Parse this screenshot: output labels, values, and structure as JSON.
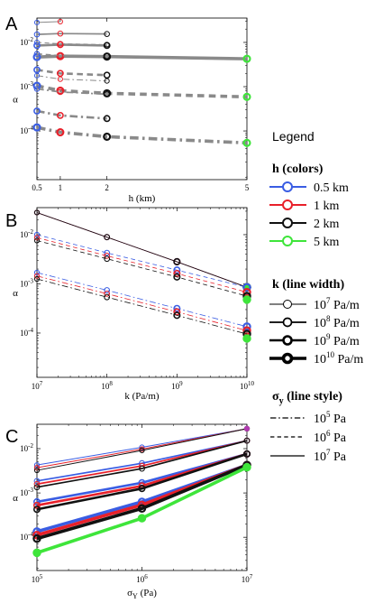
{
  "chart_data": [
    {
      "panel_label": "A",
      "type": "line",
      "xscale": "linear",
      "yscale": "log",
      "xlabel": "h (km)",
      "ylabel": "α",
      "xlim": [
        0.5,
        5
      ],
      "ylim": [
        -5.1,
        -1.45
      ],
      "xticks": [
        {
          "value": 0.5,
          "label": "0.5"
        },
        {
          "value": 1,
          "label": "1"
        },
        {
          "value": 2,
          "label": "2"
        },
        {
          "value": 5,
          "label": "5"
        }
      ],
      "yticks": [
        {
          "value": -4,
          "base": "10",
          "exp": "-4"
        },
        {
          "value": -3,
          "base": "10",
          "exp": "-3"
        },
        {
          "value": -2,
          "base": "10",
          "exp": "-2"
        }
      ],
      "series": [
        {
          "color": "gray",
          "width": 1.0,
          "style": "solid",
          "marker": 1,
          "x": [
            0.5,
            1
          ],
          "y": [
            -1.55,
            -1.53
          ]
        },
        {
          "color": "gray",
          "width": 1.7,
          "style": "solid",
          "marker": 1.7,
          "x": [
            0.5,
            1,
            2
          ],
          "y": [
            -1.82,
            -1.8,
            -1.81
          ]
        },
        {
          "color": "gray",
          "width": 2.6,
          "style": "solid",
          "marker": 2.6,
          "x": [
            0.5,
            1,
            2
          ],
          "y": [
            -2.07,
            -2.05,
            -2.07
          ]
        },
        {
          "color": "gray",
          "width": 3.6,
          "style": "solid",
          "marker": 3.6,
          "x": [
            0.5,
            1,
            2,
            5
          ],
          "y": [
            -2.33,
            -2.31,
            -2.32,
            -2.37
          ]
        },
        {
          "color": "gray",
          "width": 1.0,
          "style": "dashed",
          "marker": 1,
          "x": [
            0.5,
            1,
            2
          ],
          "y": [
            -2.0,
            -2.03,
            -2.05
          ]
        },
        {
          "color": "gray",
          "width": 1.7,
          "style": "dashed",
          "marker": 1.7,
          "x": [
            0.5,
            1,
            2
          ],
          "y": [
            -2.26,
            -2.3,
            -2.31
          ]
        },
        {
          "color": "gray",
          "width": 2.6,
          "style": "dashed",
          "marker": 2.6,
          "x": [
            0.5,
            1,
            2
          ],
          "y": [
            -2.62,
            -2.7,
            -2.74
          ]
        },
        {
          "color": "gray",
          "width": 3.6,
          "style": "dashed",
          "marker": 3.6,
          "x": [
            0.5,
            1,
            2,
            5
          ],
          "y": [
            -2.98,
            -3.09,
            -3.15,
            -3.23
          ]
        },
        {
          "color": "gray",
          "width": 1.0,
          "style": "dashdot",
          "marker": 1,
          "x": [
            0.5,
            1,
            2
          ],
          "y": [
            -2.75,
            -2.83,
            -2.87
          ]
        },
        {
          "color": "gray",
          "width": 1.7,
          "style": "dashdot",
          "marker": 1.7,
          "x": [
            0.5,
            1,
            2
          ],
          "y": [
            -3.05,
            -3.12,
            -3.17
          ]
        },
        {
          "color": "gray",
          "width": 2.6,
          "style": "dashdot",
          "marker": 2.6,
          "x": [
            0.5,
            1,
            2
          ],
          "y": [
            -3.55,
            -3.65,
            -3.72
          ]
        },
        {
          "color": "gray",
          "width": 3.6,
          "style": "dashdot",
          "marker": 3.6,
          "x": [
            0.5,
            1,
            2,
            5
          ],
          "y": [
            -3.92,
            -4.03,
            -4.13,
            -4.27
          ]
        }
      ]
    },
    {
      "panel_label": "B",
      "type": "line",
      "xscale": "log",
      "yscale": "log",
      "xlabel": "k (Pa/m)",
      "ylabel": "α",
      "xlim": [
        7,
        10
      ],
      "ylim": [
        -4.9,
        -1.45
      ],
      "xticks": [
        {
          "value": 7,
          "base": "10",
          "exp": "7"
        },
        {
          "value": 8,
          "base": "10",
          "exp": "8"
        },
        {
          "value": 9,
          "base": "10",
          "exp": "9"
        },
        {
          "value": 10,
          "base": "10",
          "exp": "10"
        }
      ],
      "yticks": [
        {
          "value": -4,
          "base": "10",
          "exp": "-4"
        },
        {
          "value": -3,
          "base": "10",
          "exp": "-3"
        },
        {
          "value": -2,
          "base": "10",
          "exp": "-2"
        }
      ],
      "series": [
        {
          "name_ref": "solid",
          "style": "solid",
          "x": [
            7,
            8,
            9,
            10
          ],
          "lines": [
            {
              "color": "blue",
              "y": [
                -1.55,
                -2.05,
                -2.55,
                -3.07
              ]
            },
            {
              "color": "red",
              "y": [
                -1.55,
                -2.05,
                -2.55,
                -3.07
              ]
            },
            {
              "color": "black",
              "y": [
                -1.55,
                -2.05,
                -2.55,
                -3.07
              ]
            },
            {
              "color": "green",
              "y": [
                null,
                null,
                null,
                -3.07
              ]
            }
          ],
          "markers": [
            [
              -1.55,
              -2.05,
              -2.55,
              -3.07
            ]
          ]
        },
        {
          "style": "dashed",
          "x": [
            7,
            8,
            9,
            10
          ],
          "lines": [
            {
              "color": "blue",
              "y": [
                -2.0,
                -2.37,
                -2.72,
                -3.07
              ]
            },
            {
              "color": "red",
              "y": [
                -2.06,
                -2.43,
                -2.79,
                -3.17
              ]
            },
            {
              "color": "black",
              "y": [
                -2.12,
                -2.49,
                -2.86,
                -3.25
              ]
            },
            {
              "color": "green",
              "y": [
                null,
                null,
                null,
                -3.32
              ]
            }
          ]
        },
        {
          "style": "dashdot",
          "x": [
            7,
            8,
            9,
            10
          ],
          "lines": [
            {
              "color": "blue",
              "y": [
                -2.77,
                -3.13,
                -3.5,
                -3.87
              ]
            },
            {
              "color": "red",
              "y": [
                -2.84,
                -3.2,
                -3.57,
                -3.95
              ]
            },
            {
              "color": "black",
              "y": [
                -2.9,
                -3.27,
                -3.64,
                -4.02
              ]
            },
            {
              "color": "green",
              "y": [
                null,
                null,
                null,
                -4.11
              ]
            }
          ]
        }
      ]
    },
    {
      "panel_label": "C",
      "type": "line",
      "xscale": "log",
      "yscale": "log",
      "xlabel": "σY (Pa)",
      "ylabel": "α",
      "xlim": [
        5,
        7
      ],
      "ylim": [
        -4.75,
        -1.45
      ],
      "xticks": [
        {
          "value": 5,
          "base": "10",
          "exp": "5"
        },
        {
          "value": 6,
          "base": "10",
          "exp": "6"
        },
        {
          "value": 7,
          "base": "10",
          "exp": "7"
        }
      ],
      "yticks": [
        {
          "value": -4,
          "base": "10",
          "exp": "-4"
        },
        {
          "value": -3,
          "base": "10",
          "exp": "-3"
        },
        {
          "value": -2,
          "base": "10",
          "exp": "-2"
        }
      ],
      "series": [
        {
          "color": "blue",
          "width": 1.0,
          "x": [
            5,
            6,
            7
          ],
          "y": [
            -2.37,
            -1.97,
            -1.55
          ]
        },
        {
          "color": "red",
          "width": 1.0,
          "x": [
            5,
            6,
            7
          ],
          "y": [
            -2.43,
            -2.01,
            -1.55
          ]
        },
        {
          "color": "black",
          "width": 1.0,
          "x": [
            5,
            6,
            7
          ],
          "y": [
            -2.49,
            -2.04,
            -1.55
          ]
        },
        {
          "color": "blue",
          "width": 1.7,
          "x": [
            5,
            6,
            7
          ],
          "y": [
            -2.73,
            -2.33,
            -1.82
          ]
        },
        {
          "color": "red",
          "width": 1.7,
          "x": [
            5,
            6,
            7
          ],
          "y": [
            -2.8,
            -2.39,
            -1.82
          ]
        },
        {
          "color": "black",
          "width": 1.7,
          "x": [
            5,
            6,
            7
          ],
          "y": [
            -2.87,
            -2.45,
            -1.82
          ]
        },
        {
          "color": "blue",
          "width": 2.6,
          "x": [
            5,
            6,
            7
          ],
          "y": [
            -3.2,
            -2.77,
            -2.12
          ]
        },
        {
          "color": "red",
          "width": 2.6,
          "x": [
            5,
            6,
            7
          ],
          "y": [
            -3.28,
            -2.84,
            -2.12
          ]
        },
        {
          "color": "black",
          "width": 2.6,
          "x": [
            5,
            6,
            7
          ],
          "y": [
            -3.37,
            -2.9,
            -2.12
          ]
        },
        {
          "color": "blue",
          "width": 3.6,
          "x": [
            5,
            6,
            7
          ],
          "y": [
            -3.87,
            -3.2,
            -2.37
          ]
        },
        {
          "color": "red",
          "width": 3.6,
          "x": [
            5,
            6,
            7
          ],
          "y": [
            -3.95,
            -3.27,
            -2.37
          ]
        },
        {
          "color": "black",
          "width": 3.6,
          "x": [
            5,
            6,
            7
          ],
          "y": [
            -4.03,
            -3.35,
            -2.37
          ]
        },
        {
          "color": "green",
          "width": 3.6,
          "x": [
            5,
            6,
            7
          ],
          "y": [
            -4.35,
            -3.57,
            -2.42
          ]
        },
        {
          "color": "magenta",
          "width": 1.0,
          "x": [
            7
          ],
          "y": [
            -1.55
          ]
        }
      ]
    }
  ],
  "legend": {
    "title": "Legend",
    "colors_heading": "h (colors)",
    "colors": [
      {
        "label": "0.5 km",
        "color": "#3a5de3"
      },
      {
        "label": "1 km",
        "color": "#e8202a"
      },
      {
        "label": "2 km",
        "color": "#111111"
      },
      {
        "label": "5 km",
        "color": "#3ee53a"
      }
    ],
    "width_heading": "k (line width)",
    "widths": [
      {
        "base": "10",
        "exp": "7",
        "unit": "Pa/m"
      },
      {
        "base": "10",
        "exp": "8",
        "unit": "Pa/m"
      },
      {
        "base": "10",
        "exp": "9",
        "unit": "Pa/m"
      },
      {
        "base": "10",
        "exp": "10",
        "unit": "Pa/m"
      }
    ],
    "style_heading_sym": "σ",
    "style_heading_sub": "y",
    "style_heading_rest": " (line style)",
    "styles": [
      {
        "base": "10",
        "exp": "5",
        "unit": "Pa",
        "dash": "dashdot"
      },
      {
        "base": "10",
        "exp": "6",
        "unit": "Pa",
        "dash": "dashed"
      },
      {
        "base": "10",
        "exp": "7",
        "unit": "Pa",
        "dash": "solid"
      }
    ]
  },
  "colors": {
    "blue": "#3a5de3",
    "red": "#e8202a",
    "black": "#111111",
    "green": "#3ee53a",
    "gray": "#8a8a8a",
    "magenta": "#b03ab0"
  }
}
